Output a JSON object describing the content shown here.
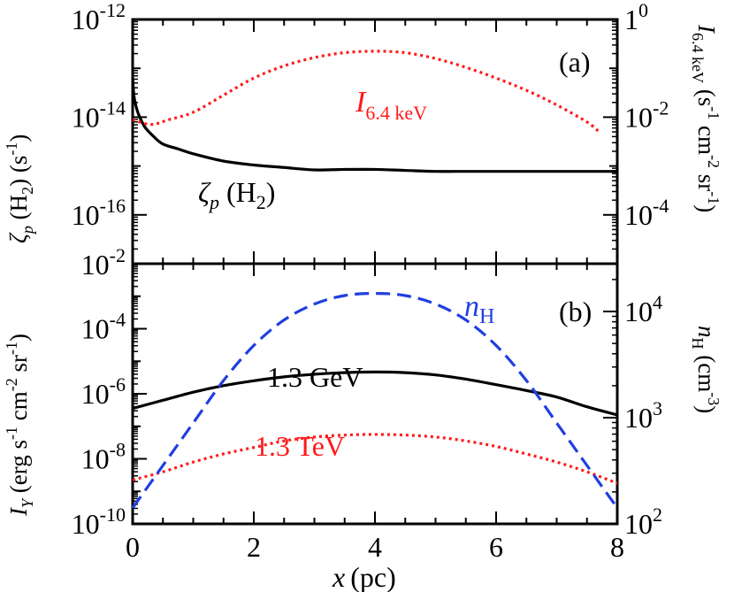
{
  "colors": {
    "axis": "#000000",
    "black_curve": "#000000",
    "red_curve": "#ff1a1a",
    "blue_curve": "#1f3fe0"
  },
  "x_axis": {
    "label_var": "x",
    "label_unit": "(pc)",
    "ticks": [
      "0",
      "2",
      "4",
      "6",
      "8"
    ],
    "tick_values": [
      0,
      2,
      4,
      6,
      8
    ],
    "range": [
      0,
      8
    ]
  },
  "panel_a": {
    "tag": "(a)",
    "left_axis": {
      "ticks": [
        {
          "value": -12,
          "base": "10",
          "exp": "-12"
        },
        {
          "value": -14,
          "base": "10",
          "exp": "-14"
        },
        {
          "value": -16,
          "base": "10",
          "exp": "-16"
        }
      ],
      "label": {
        "sym": "ζ",
        "sub": "p",
        "mid": " (H",
        "sub2": "2",
        "unit": ") (s",
        "sup": "-1",
        "close": ")"
      }
    },
    "right_axis": {
      "ticks": [
        {
          "value": 0,
          "text": "1",
          "exp": "0"
        },
        {
          "value": -2,
          "text": "10",
          "exp": "-2"
        },
        {
          "value": -4,
          "text": "10",
          "exp": "-4"
        }
      ],
      "label": {
        "sym": "I",
        "sub": "6.4 keV",
        "p1": " (s",
        "s1": "-1",
        "p2": " cm",
        "s2": "-2",
        "p3": " sr",
        "s3": "-1",
        "p4": ")"
      }
    },
    "series_labels": {
      "zeta": {
        "sym": "ζ",
        "sub": "p",
        "rest": " (H",
        "sub2": "2",
        "close": ")"
      },
      "i64": {
        "sym": "I",
        "sub": "6.4 keV"
      }
    }
  },
  "panel_b": {
    "tag": "(b)",
    "left_axis": {
      "ticks": [
        {
          "value": -2,
          "base": "10",
          "exp": "-2"
        },
        {
          "value": -4,
          "base": "10",
          "exp": "-4"
        },
        {
          "value": -6,
          "base": "10",
          "exp": "-6"
        },
        {
          "value": -8,
          "base": "10",
          "exp": "-8"
        },
        {
          "value": -10,
          "base": "10",
          "exp": "-10"
        }
      ],
      "label": {
        "sym": "I",
        "sub": "Y",
        "p1": " (erg s",
        "s1": "-1",
        "p2": " cm",
        "s2": "-2",
        "p3": " sr",
        "s3": "-1",
        "p4": ")"
      }
    },
    "right_axis": {
      "ticks": [
        {
          "value": 4,
          "base": "10",
          "exp": "4"
        },
        {
          "value": 3,
          "base": "10",
          "exp": "3"
        },
        {
          "value": 2,
          "base": "10",
          "exp": "2"
        }
      ],
      "label": {
        "sym": "n",
        "sub": "H",
        "p1": " (cm",
        "s1": "-3",
        "p2": ")"
      }
    },
    "series_labels": {
      "gev": "1.3 GeV",
      "tev": "1.3 TeV",
      "nh": {
        "sym": "n",
        "sub": "H"
      }
    }
  },
  "chart_data": [
    {
      "panel": "a",
      "type": "line",
      "xlim": [
        0,
        8
      ],
      "ylim_left_log10": [
        -17,
        -12
      ],
      "ylim_right_log10": [
        -5,
        0
      ],
      "yscale": "log",
      "grid": false,
      "series": [
        {
          "name": "ζp (H2)",
          "axis": "left",
          "style": "solid",
          "color": "#000000",
          "x": [
            0.0,
            0.02,
            0.05,
            0.1,
            0.2,
            0.35,
            0.5,
            0.75,
            1.0,
            1.5,
            2.0,
            2.5,
            3.0,
            3.5,
            4.0,
            4.5,
            5.0,
            5.5,
            6.0,
            6.5,
            7.0,
            7.5,
            8.0
          ],
          "log10": [
            -13.2,
            -13.55,
            -13.75,
            -13.95,
            -14.2,
            -14.4,
            -14.55,
            -14.65,
            -14.75,
            -14.9,
            -14.98,
            -15.03,
            -15.08,
            -15.07,
            -15.07,
            -15.09,
            -15.11,
            -15.11,
            -15.11,
            -15.11,
            -15.11,
            -15.11,
            -15.11
          ]
        },
        {
          "name": "I 6.4 keV",
          "axis": "right",
          "style": "dotted",
          "color": "#ff1a1a",
          "x": [
            0.0,
            0.3,
            0.6,
            1.0,
            1.5,
            2.0,
            2.5,
            3.0,
            3.5,
            4.0,
            4.5,
            5.0,
            5.5,
            6.0,
            6.5,
            7.0,
            7.5,
            7.7
          ],
          "log10": [
            -2.05,
            -2.15,
            -2.05,
            -1.9,
            -1.55,
            -1.2,
            -0.95,
            -0.78,
            -0.68,
            -0.65,
            -0.68,
            -0.8,
            -0.98,
            -1.2,
            -1.45,
            -1.75,
            -2.1,
            -2.3
          ]
        }
      ]
    },
    {
      "panel": "b",
      "type": "line",
      "xlim": [
        0,
        8
      ],
      "ylim_left_log10": [
        -10,
        -2
      ],
      "ylim_right_log10": [
        2,
        4.45
      ],
      "yscale": "log",
      "grid": false,
      "series": [
        {
          "name": "1.3 GeV",
          "axis": "left",
          "style": "solid",
          "color": "#000000",
          "x": [
            0.0,
            0.5,
            1.0,
            1.5,
            2.0,
            2.5,
            3.0,
            3.5,
            4.0,
            4.5,
            5.0,
            5.5,
            6.0,
            6.5,
            7.0,
            7.5,
            8.0
          ],
          "log10": [
            -6.45,
            -6.2,
            -5.95,
            -5.75,
            -5.6,
            -5.48,
            -5.4,
            -5.35,
            -5.33,
            -5.35,
            -5.42,
            -5.55,
            -5.72,
            -5.9,
            -6.1,
            -6.4,
            -6.65
          ]
        },
        {
          "name": "1.3 TeV",
          "axis": "left",
          "style": "dotted",
          "color": "#ff1a1a",
          "x": [
            0.0,
            0.5,
            1.0,
            1.5,
            2.0,
            2.5,
            3.0,
            3.5,
            4.0,
            4.5,
            5.0,
            5.5,
            6.0,
            6.5,
            7.0,
            7.5,
            8.0
          ],
          "log10": [
            -8.65,
            -8.4,
            -8.1,
            -7.85,
            -7.65,
            -7.45,
            -7.33,
            -7.27,
            -7.25,
            -7.27,
            -7.33,
            -7.45,
            -7.62,
            -7.85,
            -8.1,
            -8.4,
            -8.75
          ]
        },
        {
          "name": "nH",
          "axis": "right",
          "style": "dashed",
          "color": "#1f3fe0",
          "x": [
            0.0,
            0.25,
            0.5,
            1.0,
            1.5,
            2.0,
            2.5,
            3.0,
            3.5,
            4.0,
            4.5,
            5.0,
            5.5,
            6.0,
            6.5,
            7.0,
            7.5,
            7.75,
            8.0
          ],
          "log10": [
            2.15,
            2.35,
            2.55,
            2.95,
            3.35,
            3.68,
            3.92,
            4.07,
            4.15,
            4.17,
            4.15,
            4.07,
            3.92,
            3.68,
            3.35,
            2.95,
            2.55,
            2.35,
            2.15
          ]
        }
      ]
    }
  ]
}
